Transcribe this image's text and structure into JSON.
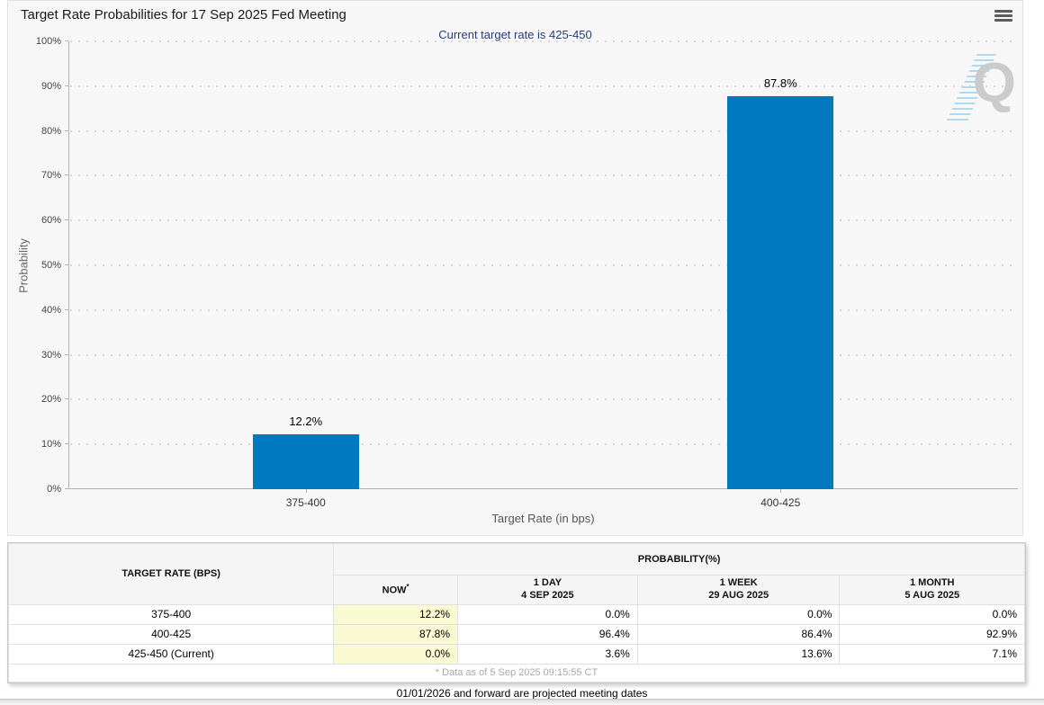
{
  "header": {
    "title": "Target Rate Probabilities for 17 Sep 2025 Fed Meeting"
  },
  "chart_data": {
    "type": "bar",
    "subtitle": "Current target rate is 425-450",
    "categories": [
      "375-400",
      "400-425"
    ],
    "values": [
      12.2,
      87.8
    ],
    "value_labels": [
      "12.2%",
      "87.8%"
    ],
    "xlabel": "Target Rate (in bps)",
    "ylabel": "Probability",
    "ylim": [
      0,
      100
    ],
    "ytick_step": 10,
    "ytick_labels": [
      "0%",
      "10%",
      "20%",
      "30%",
      "40%",
      "50%",
      "60%",
      "70%",
      "80%",
      "90%",
      "100%"
    ],
    "bar_color": "#0079c1",
    "grid": "dotted-horizontal",
    "legend": "none"
  },
  "watermark": {
    "letter": "Q"
  },
  "table": {
    "col1_header": "TARGET RATE (BPS)",
    "group_header": "PROBABILITY(%)",
    "columns": [
      {
        "label": "NOW",
        "sup": "*",
        "sub": ""
      },
      {
        "label": "1 DAY",
        "sup": "",
        "sub": "4 SEP 2025"
      },
      {
        "label": "1 WEEK",
        "sup": "",
        "sub": "29 AUG 2025"
      },
      {
        "label": "1 MONTH",
        "sup": "",
        "sub": "5 AUG 2025"
      }
    ],
    "rows": [
      {
        "rate": "375-400",
        "values": [
          "12.2%",
          "0.0%",
          "0.0%",
          "0.0%"
        ]
      },
      {
        "rate": "400-425",
        "values": [
          "87.8%",
          "96.4%",
          "86.4%",
          "92.9%"
        ]
      },
      {
        "rate": "425-450 (Current)",
        "values": [
          "0.0%",
          "3.6%",
          "13.6%",
          "7.1%"
        ]
      }
    ],
    "footnote": "* Data as of 5 Sep 2025 09:15:55 CT"
  },
  "footer": {
    "note": "01/01/2026 and forward are projected meeting dates"
  },
  "colors": {
    "bar": "#0079c1",
    "now_column_bg": "#fafad2",
    "subtitle_text": "#263c7a"
  }
}
